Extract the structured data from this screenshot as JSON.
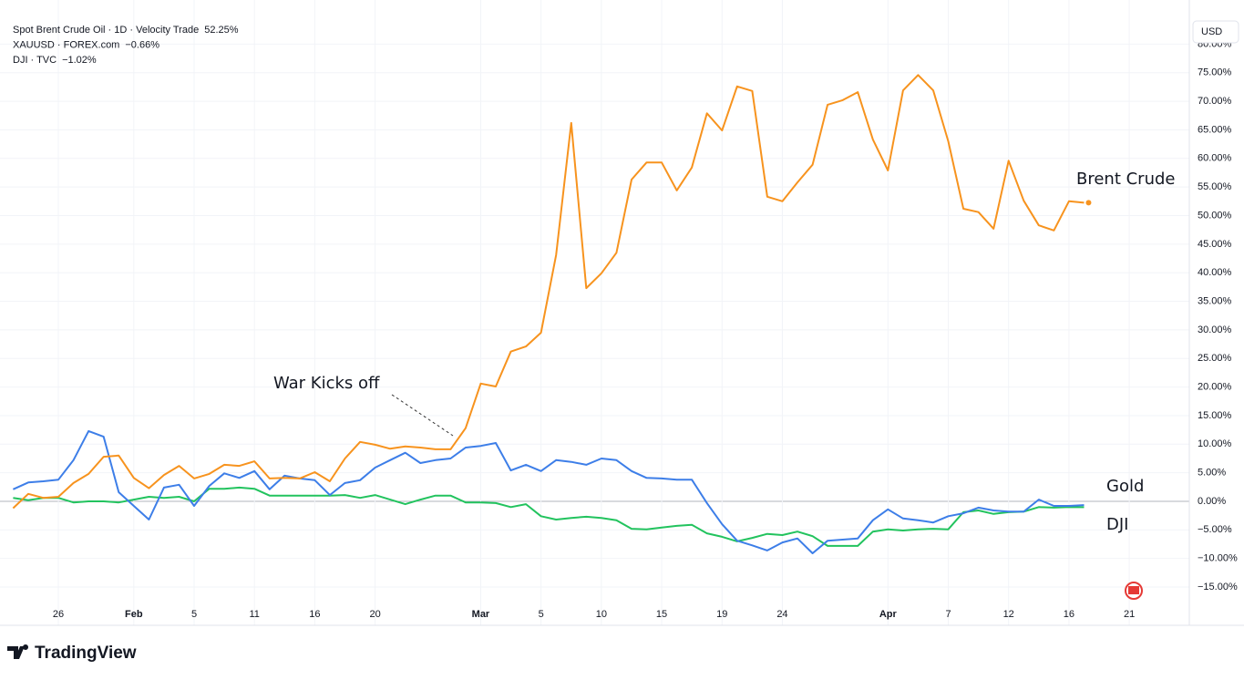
{
  "chart_data": {
    "type": "line",
    "series": [
      {
        "name": "Spot Brent Crude Oil · 1D · Velocity Trade",
        "legend_value": "52.25%",
        "color": "#f7931e",
        "values": [
          -1.2,
          1.3,
          0.6,
          0.8,
          3.2,
          4.8,
          7.8,
          8.0,
          4.1,
          2.3,
          4.6,
          6.2,
          4.0,
          4.8,
          6.4,
          6.2,
          7.0,
          4.0,
          4.1,
          4.0,
          5.1,
          3.5,
          7.5,
          10.4,
          9.9,
          9.2,
          9.6,
          9.4,
          9.1,
          9.1,
          12.8,
          20.6,
          20.1,
          26.2,
          27.1,
          29.5,
          43.1,
          66.2,
          37.3,
          39.9,
          43.5,
          56.3,
          59.3,
          59.3,
          54.4,
          58.4,
          67.9,
          64.9,
          72.6,
          71.8,
          53.3,
          52.5,
          55.8,
          58.9,
          69.4,
          70.2,
          71.6,
          63.3,
          57.9,
          71.9,
          74.6,
          71.9,
          63.0,
          51.2,
          50.6,
          47.7,
          59.6,
          52.6,
          48.3,
          47.4,
          52.5,
          52.25,
          null,
          null,
          null
        ]
      },
      {
        "name": "XAUUSD · FOREX.com",
        "legend_value": "−0.66%",
        "color": "#3d7ee8",
        "values": [
          2.1,
          3.3,
          3.5,
          3.8,
          7.2,
          12.3,
          11.3,
          1.6,
          -0.8,
          -3.2,
          2.4,
          2.9,
          -0.8,
          2.7,
          4.9,
          4.1,
          5.3,
          2.1,
          4.5,
          4.0,
          3.7,
          1.1,
          3.2,
          3.7,
          5.9,
          7.2,
          8.5,
          6.7,
          7.2,
          7.5,
          9.4,
          9.7,
          10.2,
          5.4,
          6.4,
          5.3,
          7.2,
          6.9,
          6.4,
          7.5,
          7.2,
          5.3,
          4.1,
          4.0,
          3.8,
          3.8,
          -0.3,
          -4.0,
          -6.9,
          -7.7,
          -8.6,
          -7.2,
          -6.5,
          -9.1,
          -6.9,
          -6.7,
          -6.5,
          -3.3,
          -1.4,
          -3.0,
          -3.3,
          -3.7,
          -2.6,
          -2.1,
          -1.1,
          -1.6,
          -1.8,
          -1.8,
          0.3,
          -0.8,
          -0.8,
          -0.66,
          null,
          null,
          null
        ]
      },
      {
        "name": "DJI · TVC",
        "legend_value": "−1.02%",
        "color": "#22c35e",
        "values": [
          0.6,
          0.2,
          0.6,
          0.6,
          -0.2,
          0,
          0,
          -0.2,
          0.3,
          0.8,
          0.6,
          0.8,
          0,
          2.2,
          2.2,
          2.4,
          2.2,
          1.0,
          1.0,
          1.0,
          1.0,
          1.0,
          1.1,
          0.6,
          1.1,
          0.3,
          -0.5,
          0.3,
          1.0,
          1.0,
          -0.2,
          -0.2,
          -0.3,
          -1.0,
          -0.5,
          -2.6,
          -3.2,
          -2.9,
          -2.7,
          -2.9,
          -3.3,
          -4.8,
          -4.9,
          -4.6,
          -4.3,
          -4.1,
          -5.6,
          -6.2,
          -7.0,
          -6.4,
          -5.7,
          -5.9,
          -5.3,
          -6.1,
          -7.8,
          -7.8,
          -7.8,
          -5.3,
          -4.9,
          -5.1,
          -4.9,
          -4.8,
          -4.9,
          -1.9,
          -1.6,
          -2.2,
          -1.9,
          -1.8,
          -1.0,
          -1.1,
          -1.0,
          -1.02,
          null,
          null,
          null
        ]
      }
    ],
    "categories": [
      null,
      null,
      null,
      "26",
      null,
      null,
      null,
      null,
      "Feb",
      null,
      null,
      null,
      "5",
      null,
      null,
      null,
      "11",
      null,
      null,
      null,
      "16",
      null,
      null,
      null,
      "20",
      null,
      null,
      null,
      null,
      null,
      null,
      "Mar",
      null,
      null,
      null,
      "5",
      null,
      null,
      null,
      "10",
      null,
      null,
      null,
      "15",
      null,
      null,
      null,
      "19",
      null,
      null,
      null,
      "24",
      null,
      null,
      null,
      null,
      null,
      null,
      "Apr",
      null,
      null,
      null,
      "7",
      null,
      null,
      null,
      "12",
      null,
      null,
      null,
      "16",
      null,
      null,
      null,
      "21"
    ],
    "ylim": [
      -17.5,
      84.5
    ],
    "yticks": [
      {
        "value": -15,
        "label": "−15.00%"
      },
      {
        "value": -10,
        "label": "−10.00%"
      },
      {
        "value": -5,
        "label": "−5.00%"
      },
      {
        "value": 0,
        "label": "0.00%"
      },
      {
        "value": 5,
        "label": "5.00%"
      },
      {
        "value": 10,
        "label": "10.00%"
      },
      {
        "value": 15,
        "label": "15.00%"
      },
      {
        "value": 20,
        "label": "20.00%"
      },
      {
        "value": 25,
        "label": "25.00%"
      },
      {
        "value": 30,
        "label": "30.00%"
      },
      {
        "value": 35,
        "label": "35.00%"
      },
      {
        "value": 40,
        "label": "40.00%"
      },
      {
        "value": 45,
        "label": "45.00%"
      },
      {
        "value": 50,
        "label": "50.00%"
      },
      {
        "value": 55,
        "label": "55.00%"
      },
      {
        "value": 60,
        "label": "60.00%"
      },
      {
        "value": 65,
        "label": "65.00%"
      },
      {
        "value": 70,
        "label": "70.00%"
      },
      {
        "value": 75,
        "label": "75.00%"
      },
      {
        "value": 80,
        "label": "80.00%"
      }
    ],
    "grid": true,
    "zero_line": true,
    "annotations": [
      "War Kicks off",
      "Brent Crude",
      "Gold",
      "DJI"
    ]
  },
  "currency_label": "USD",
  "brand": "TradingView"
}
